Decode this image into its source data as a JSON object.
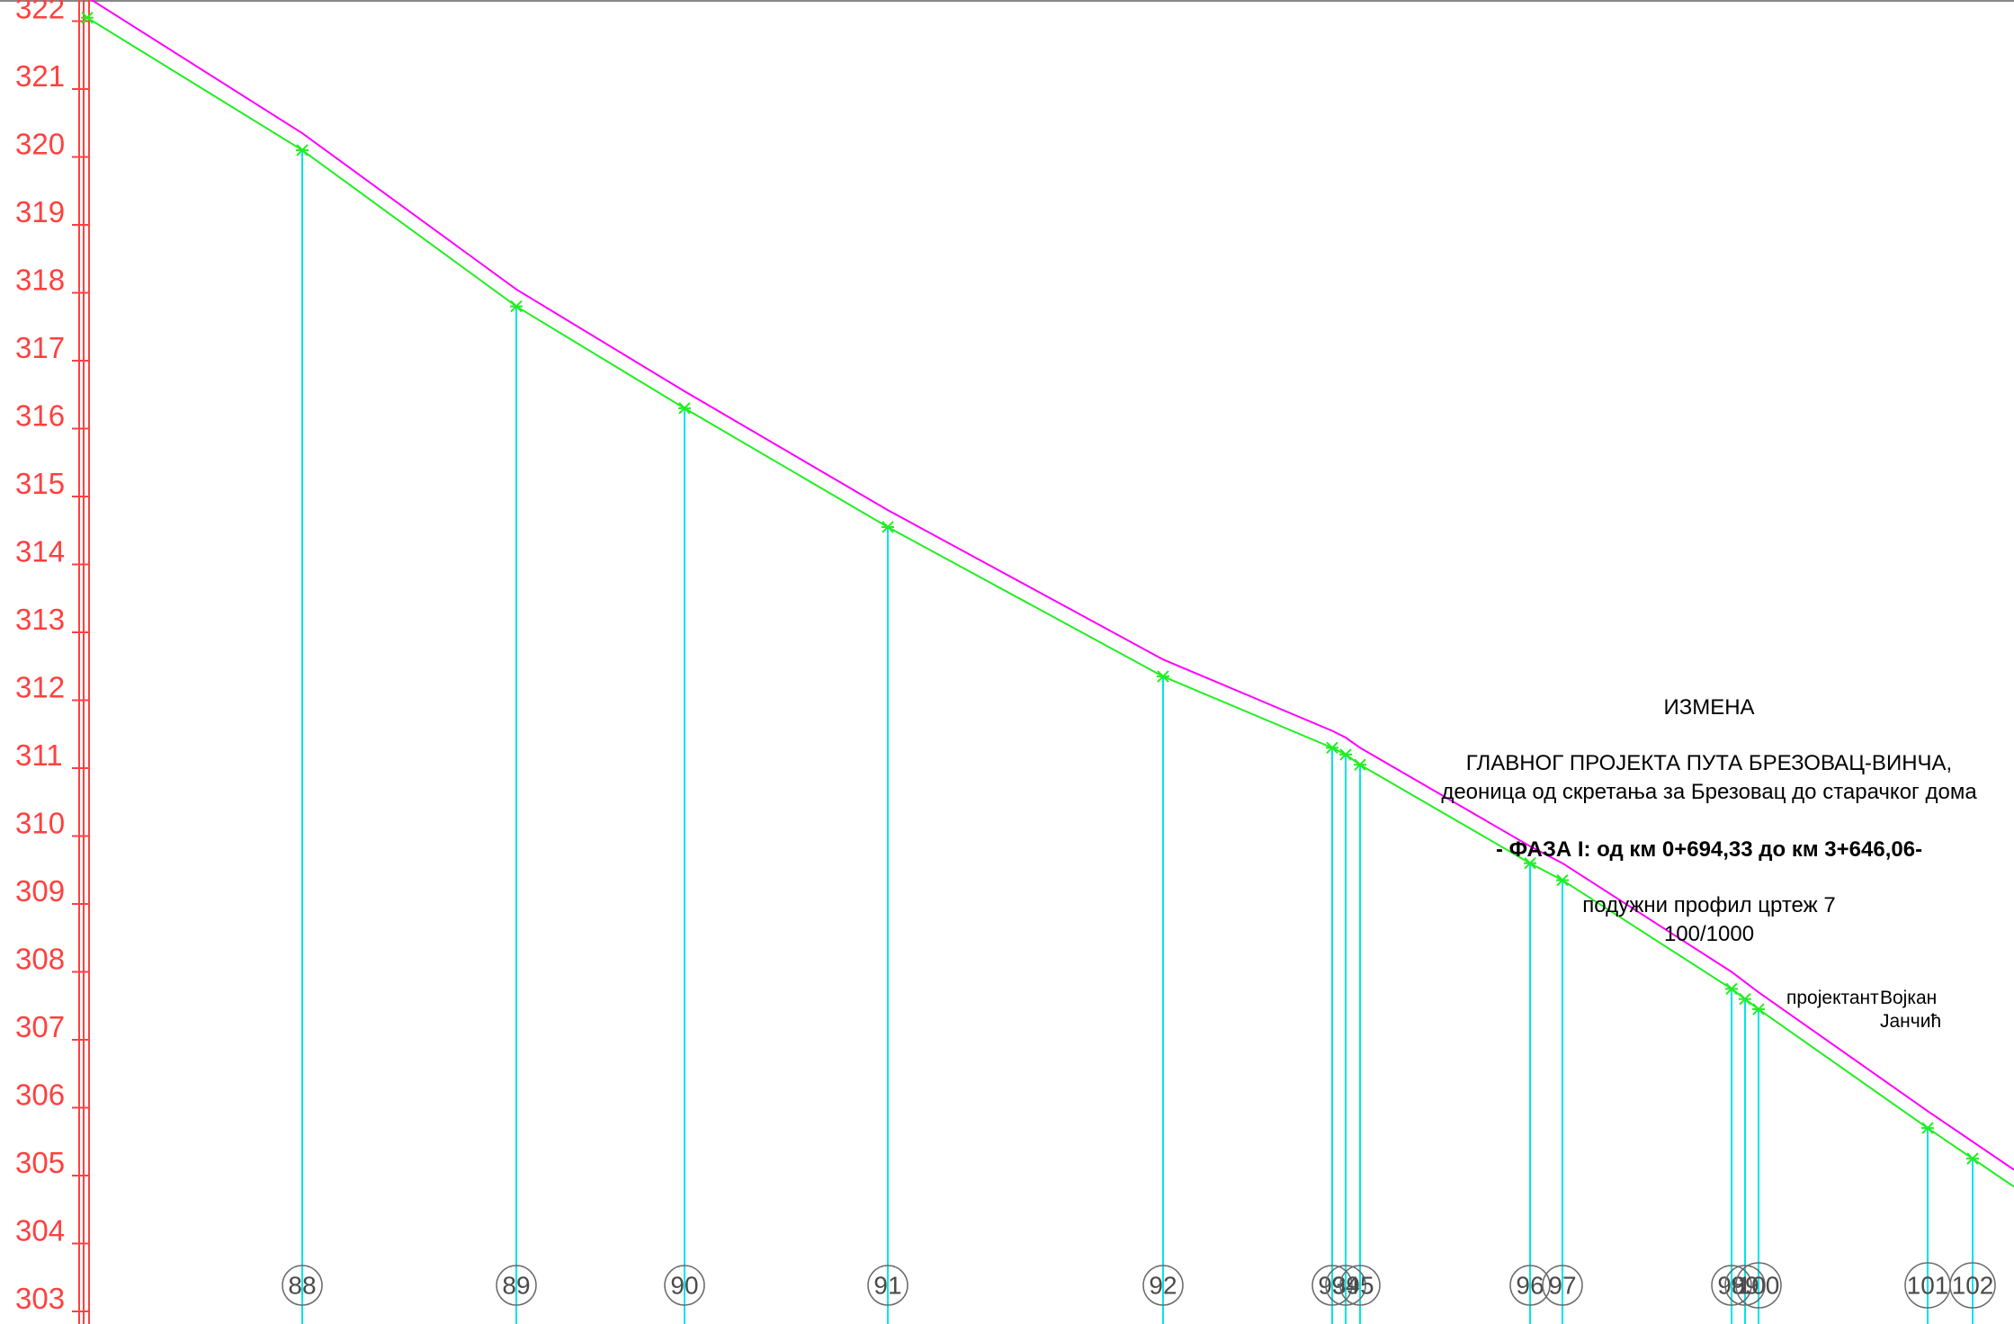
{
  "colors": {
    "axis": "#ff4040",
    "station_line": "#00e5e5",
    "design_grade": "#ff00ff",
    "terrain": "#22ee22",
    "station_circle": "#6a6a6a",
    "text": "#000000"
  },
  "chart_data": {
    "type": "line",
    "ylim": [
      303,
      322.5
    ],
    "y_ticks": [
      303,
      304,
      305,
      306,
      307,
      308,
      309,
      310,
      311,
      312,
      313,
      314,
      315,
      316,
      317,
      318,
      319,
      320,
      321,
      322
    ],
    "stations": [
      {
        "label": "88",
        "elev": 320.1
      },
      {
        "label": "89",
        "elev": 317.8
      },
      {
        "label": "90",
        "elev": 316.3
      },
      {
        "label": "91",
        "elev": 314.55
      },
      {
        "label": "92",
        "elev": 312.35
      },
      {
        "label": "93",
        "elev": 311.3
      },
      {
        "label": "94",
        "elev": 311.2
      },
      {
        "label": "95",
        "elev": 311.05
      },
      {
        "label": "96",
        "elev": 309.6
      },
      {
        "label": "97",
        "elev": 309.35
      },
      {
        "label": "98",
        "elev": 307.75
      },
      {
        "label": "99",
        "elev": 307.6
      },
      {
        "label": "100",
        "elev": 307.45
      },
      {
        "label": "101",
        "elev": 305.7
      },
      {
        "label": "102",
        "elev": 305.25
      }
    ],
    "terrain_start_elev": 322.05,
    "design_offset": 0.25
  },
  "title_block": {
    "change": "ИЗМЕНА",
    "project": "ГЛАВНОГ ПРОЈЕКТА ПУТА БРЕЗОВАЦ-ВИНЧА,",
    "section": "деоница од скретања за Брезовац до старачког дома",
    "phase": "- ФАЗА I: од км 0+694,33  до км 3+646,06-",
    "drawing": "подужни профил цртеж 7",
    "scale": "100/1000",
    "designer_label": "пројектант",
    "designer_first": "Војкан",
    "designer_last": "Јанчић"
  }
}
